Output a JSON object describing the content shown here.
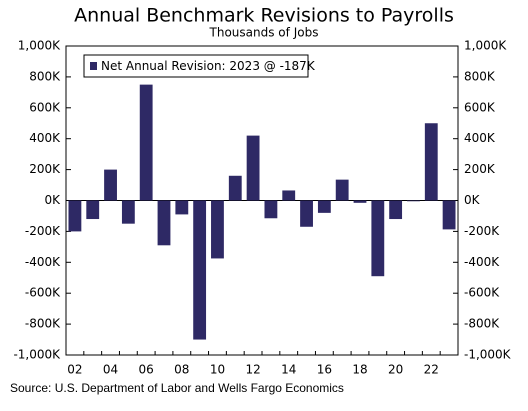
{
  "chart_data": {
    "type": "bar",
    "title": "Annual Benchmark Revisions to Payrolls",
    "subtitle": "Thousands of Jobs",
    "source": "Source: U.S. Department of Labor and Wells Fargo Economics",
    "categories": [
      "02",
      null,
      "04",
      null,
      "06",
      null,
      "08",
      null,
      "10",
      null,
      "12",
      null,
      "14",
      null,
      "16",
      null,
      "18",
      null,
      "20",
      null,
      "22",
      null
    ],
    "series": [
      {
        "name": "Net Annual Revision: 2023 @ -187K",
        "color": "#2e2965",
        "values": [
          -200,
          -120,
          200,
          -150,
          750,
          -290,
          -90,
          -900,
          -375,
          160,
          420,
          -115,
          65,
          -170,
          -80,
          135,
          -15,
          -490,
          -120,
          -5,
          500,
          -187
        ]
      }
    ],
    "ylim": [
      -1000,
      1000
    ],
    "yticks": [
      {
        "value": -1000,
        "label": "-1,000K"
      },
      {
        "value": -800,
        "label": "-800K"
      },
      {
        "value": -600,
        "label": "-600K"
      },
      {
        "value": -400,
        "label": "-400K"
      },
      {
        "value": -200,
        "label": "-200K"
      },
      {
        "value": 0,
        "label": "0K"
      },
      {
        "value": 200,
        "label": "200K"
      },
      {
        "value": 400,
        "label": "400K"
      },
      {
        "value": 600,
        "label": "600K"
      },
      {
        "value": 800,
        "label": "800K"
      },
      {
        "value": 1000,
        "label": "1,000K"
      }
    ],
    "y2lim": [
      -1000,
      1000
    ],
    "y2ticks": [
      {
        "value": -1000,
        "label": "-1,000K"
      },
      {
        "value": -800,
        "label": "-800K"
      },
      {
        "value": -600,
        "label": "-600K"
      },
      {
        "value": -400,
        "label": "-400K"
      },
      {
        "value": -200,
        "label": "-200K"
      },
      {
        "value": 0,
        "label": "0K"
      },
      {
        "value": 200,
        "label": "200K"
      },
      {
        "value": 400,
        "label": "400K"
      },
      {
        "value": 600,
        "label": "600K"
      },
      {
        "value": 800,
        "label": "800K"
      },
      {
        "value": 1000,
        "label": "1,000K"
      }
    ],
    "legend": "upper-left"
  }
}
